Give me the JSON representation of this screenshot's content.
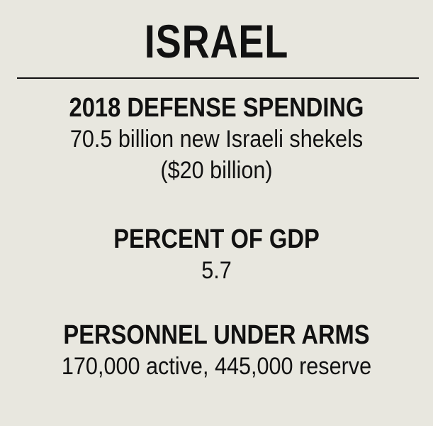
{
  "title": "ISRAEL",
  "sections": [
    {
      "heading": "2018 DEFENSE SPENDING",
      "lines": [
        "70.5 billion new Israeli shekels",
        "($20 billion)"
      ]
    },
    {
      "heading": "PERCENT OF GDP",
      "lines": [
        "5.7"
      ]
    },
    {
      "heading": "PERSONNEL UNDER ARMS",
      "lines": [
        "170,000 active, 445,000 reserve"
      ]
    }
  ],
  "colors": {
    "background": "#e8e7df",
    "text": "#111111"
  }
}
